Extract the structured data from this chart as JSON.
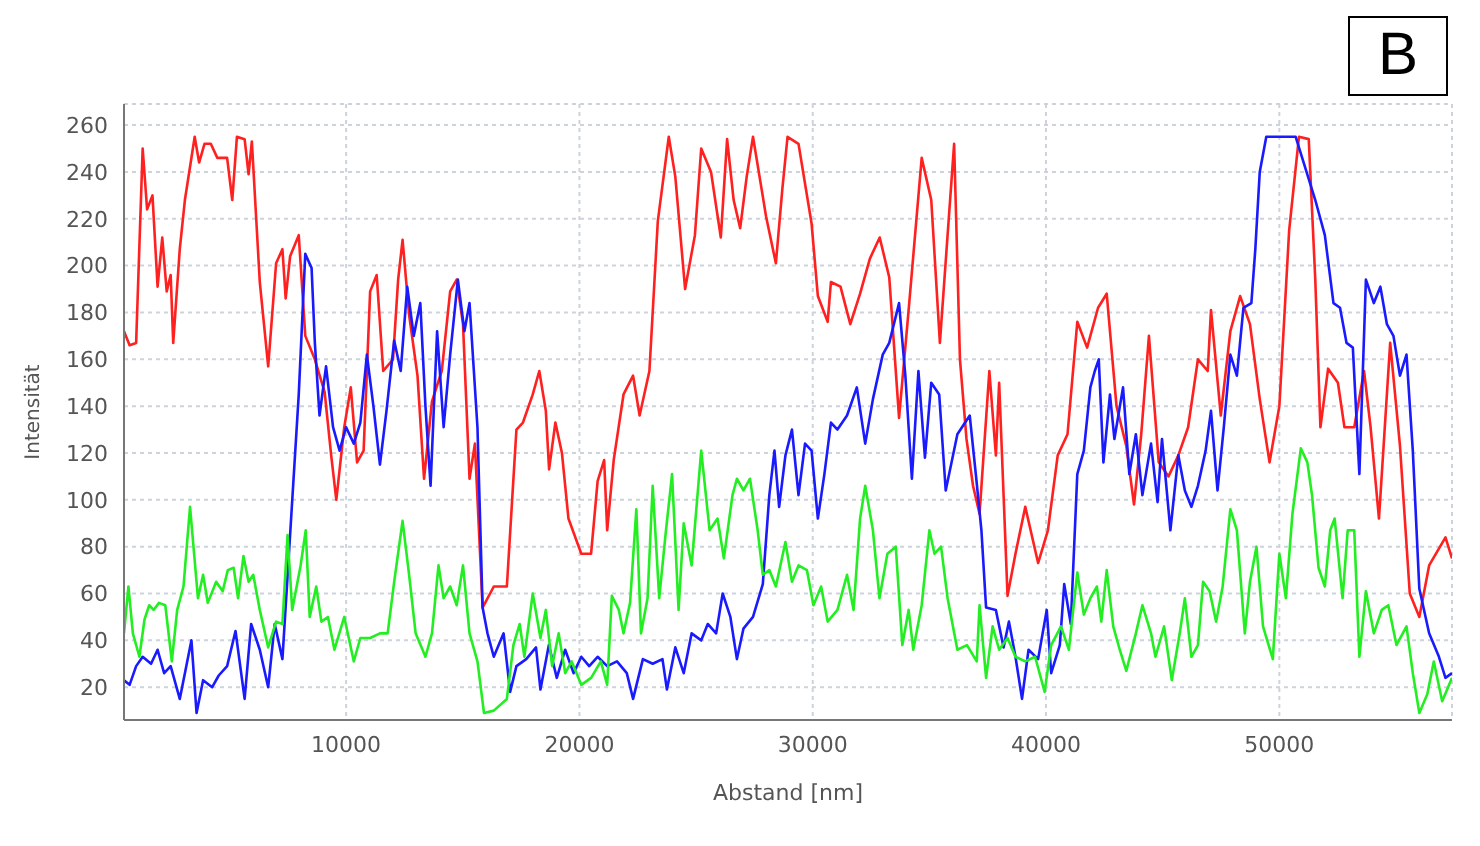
{
  "chart_data": {
    "type": "line",
    "xlabel": "Abstand [nm]",
    "ylabel": "Intensität",
    "annotations": [
      "B"
    ],
    "xlim": [
      480,
      57400
    ],
    "ylim": [
      6,
      269
    ],
    "xticks": [
      10000,
      20000,
      30000,
      40000,
      50000
    ],
    "yticks": [
      20,
      40,
      60,
      80,
      100,
      120,
      140,
      160,
      180,
      200,
      220,
      240,
      260
    ],
    "grid": true,
    "legend": false,
    "marker": "none",
    "line_style": "solid",
    "series": [
      {
        "color": "#ff2020",
        "x": [
          480,
          720,
          1000,
          1280,
          1470,
          1700,
          1920,
          2120,
          2310,
          2480,
          2590,
          2870,
          3090,
          3510,
          3700,
          3930,
          4200,
          4480,
          4900,
          5120,
          5320,
          5650,
          5820,
          5960,
          6300,
          6660,
          7000,
          7270,
          7410,
          7600,
          7970,
          8250,
          8660,
          9080,
          9360,
          9580,
          9920,
          10200,
          10470,
          10750,
          11030,
          11310,
          11590,
          12010,
          12230,
          12420,
          12700,
          13060,
          13340,
          13680,
          14100,
          14460,
          14740,
          15010,
          15290,
          15520,
          15850,
          16330,
          16890,
          17300,
          17580,
          18000,
          18280,
          18560,
          18700,
          18970,
          19250,
          19530,
          20080,
          20500,
          20780,
          21060,
          21190,
          21470,
          21890,
          22300,
          22580,
          23000,
          23360,
          23830,
          24110,
          24530,
          24950,
          25220,
          25640,
          26060,
          26330,
          26610,
          26890,
          27170,
          27440,
          28000,
          28420,
          28700,
          28920,
          29390,
          29950,
          30220,
          30640,
          30780,
          31190,
          31610,
          32030,
          32450,
          32870,
          33280,
          33700,
          34110,
          34670,
          35080,
          35450,
          36060,
          36310,
          36590,
          36870,
          37150,
          37570,
          37850,
          37990,
          38350,
          38690,
          39110,
          39660,
          40080,
          40500,
          40920,
          41340,
          41760,
          42230,
          42600,
          43020,
          43440,
          43770,
          44080,
          44410,
          44830,
          45250,
          45670,
          46090,
          46510,
          46930,
          47070,
          47490,
          47900,
          48320,
          48740,
          49160,
          49580,
          50000,
          50420,
          50840,
          51260,
          51540,
          51760,
          52090,
          52510,
          52790,
          53210,
          53630,
          53910,
          54270,
          54750,
          55170,
          55590,
          56000,
          56420,
          57120,
          57400
        ],
        "values": [
          172,
          166,
          167,
          250,
          224,
          230,
          191,
          212,
          189,
          196,
          167,
          207,
          228,
          255,
          244,
          252,
          252,
          246,
          246,
          228,
          255,
          254,
          239,
          253,
          193,
          157,
          201,
          207,
          186,
          204,
          213,
          170,
          160,
          146,
          119,
          100,
          131,
          148,
          116,
          121,
          189,
          196,
          155,
          160,
          194,
          211,
          179,
          153,
          109,
          142,
          155,
          189,
          194,
          175,
          109,
          124,
          54,
          63,
          63,
          130,
          133,
          145,
          155,
          138,
          113,
          133,
          120,
          92,
          77,
          77,
          108,
          117,
          87,
          117,
          145,
          153,
          136,
          155,
          219,
          255,
          238,
          190,
          213,
          250,
          240,
          212,
          254,
          228,
          216,
          238,
          255,
          221,
          201,
          233,
          255,
          252,
          218,
          187,
          176,
          193,
          191,
          175,
          188,
          203,
          212,
          195,
          135,
          181,
          246,
          228,
          167,
          252,
          160,
          126,
          106,
          94,
          155,
          119,
          150,
          59,
          77,
          97,
          73,
          87,
          119,
          128,
          176,
          165,
          182,
          188,
          140,
          123,
          98,
          128,
          170,
          116,
          110,
          119,
          131,
          160,
          155,
          181,
          136,
          172,
          187,
          175,
          143,
          116,
          140,
          215,
          255,
          254,
          194,
          131,
          156,
          150,
          131,
          131,
          155,
          131,
          92,
          167,
          123,
          60,
          50,
          72,
          84,
          75
        ]
      },
      {
        "color": "#1a1aff",
        "x": [
          480,
          720,
          1000,
          1280,
          1640,
          1920,
          2200,
          2480,
          2870,
          3090,
          3370,
          3590,
          3870,
          4260,
          4540,
          4900,
          5260,
          5650,
          5930,
          6300,
          6660,
          6940,
          7270,
          7550,
          7970,
          8250,
          8520,
          8660,
          8860,
          9140,
          9440,
          9720,
          10000,
          10330,
          10610,
          10890,
          11170,
          11450,
          11730,
          12060,
          12340,
          12620,
          12900,
          13180,
          13400,
          13620,
          13900,
          14180,
          14460,
          14790,
          15070,
          15290,
          15630,
          15850,
          16060,
          16330,
          16750,
          17030,
          17300,
          17720,
          18140,
          18330,
          18690,
          19030,
          19390,
          19750,
          20080,
          20420,
          20780,
          21190,
          21610,
          22030,
          22300,
          22720,
          23140,
          23560,
          23750,
          24110,
          24470,
          24810,
          25220,
          25500,
          25860,
          26140,
          26470,
          26750,
          27030,
          27440,
          27860,
          28140,
          28360,
          28560,
          28830,
          29110,
          29390,
          29670,
          29950,
          30220,
          30500,
          30780,
          31060,
          31470,
          31890,
          32250,
          32580,
          33000,
          33280,
          33700,
          33970,
          34250,
          34530,
          34810,
          35080,
          35420,
          35700,
          36200,
          36730,
          37010,
          37230,
          37430,
          37850,
          38180,
          38410,
          38690,
          38970,
          39250,
          39660,
          40030,
          40220,
          40590,
          40780,
          41060,
          41340,
          41620,
          41900,
          42090,
          42260,
          42460,
          42740,
          42930,
          43300,
          43570,
          43850,
          44130,
          44500,
          44780,
          44970,
          45330,
          45670,
          45950,
          46230,
          46510,
          46840,
          47070,
          47350,
          47620,
          47900,
          48180,
          48460,
          48800,
          48970,
          49160,
          49440,
          50700,
          51540,
          51950,
          52320,
          52600,
          52880,
          53150,
          53430,
          53710,
          54050,
          54330,
          54610,
          54890,
          55170,
          55450,
          55720,
          56000,
          56420,
          56840,
          57120,
          57400
        ],
        "values": [
          23,
          21,
          29,
          33,
          30,
          36,
          26,
          29,
          15,
          26,
          40,
          9,
          23,
          20,
          25,
          29,
          44,
          15,
          47,
          36,
          20,
          47,
          32,
          77,
          145,
          205,
          199,
          167,
          136,
          157,
          131,
          121,
          131,
          124,
          133,
          162,
          140,
          115,
          138,
          168,
          155,
          191,
          170,
          184,
          140,
          106,
          172,
          131,
          162,
          194,
          172,
          184,
          131,
          54,
          43,
          33,
          43,
          18,
          29,
          32,
          37,
          19,
          38,
          24,
          36,
          26,
          33,
          29,
          33,
          29,
          31,
          26,
          15,
          32,
          30,
          32,
          19,
          37,
          26,
          43,
          40,
          47,
          43,
          60,
          50,
          32,
          45,
          50,
          64,
          102,
          121,
          97,
          119,
          130,
          102,
          124,
          121,
          92,
          111,
          133,
          130,
          136,
          148,
          124,
          143,
          162,
          167,
          184,
          153,
          109,
          155,
          118,
          150,
          145,
          104,
          128,
          136,
          109,
          87,
          54,
          53,
          37,
          48,
          33,
          15,
          36,
          32,
          53,
          26,
          38,
          64,
          47,
          111,
          121,
          148,
          155,
          160,
          116,
          145,
          126,
          148,
          111,
          128,
          102,
          124,
          99,
          126,
          87,
          119,
          104,
          97,
          106,
          121,
          138,
          104,
          131,
          162,
          153,
          182,
          184,
          207,
          240,
          255,
          255,
          228,
          213,
          184,
          182,
          167,
          165,
          111,
          194,
          184,
          191,
          175,
          170,
          153,
          162,
          121,
          62,
          43,
          33,
          24,
          26
        ]
      },
      {
        "color": "#22ee22",
        "x": [
          480,
          670,
          860,
          1140,
          1360,
          1560,
          1750,
          1980,
          2250,
          2530,
          2760,
          3030,
          3310,
          3650,
          3870,
          4070,
          4430,
          4710,
          4930,
          5180,
          5370,
          5600,
          5820,
          6020,
          6300,
          6660,
          7000,
          7270,
          7490,
          7690,
          8050,
          8270,
          8440,
          8720,
          8940,
          9220,
          9500,
          9920,
          10330,
          10610,
          11030,
          11450,
          11780,
          12060,
          12420,
          12700,
          12980,
          13400,
          13680,
          13960,
          14180,
          14460,
          14740,
          15010,
          15290,
          15630,
          15910,
          16330,
          16890,
          17170,
          17440,
          17640,
          18000,
          18330,
          18560,
          18830,
          19110,
          19390,
          19670,
          20080,
          20500,
          20920,
          21190,
          21390,
          21690,
          21890,
          22170,
          22440,
          22640,
          22920,
          23140,
          23420,
          23690,
          23970,
          24250,
          24470,
          24810,
          25220,
          25580,
          25920,
          26190,
          26560,
          26750,
          27030,
          27310,
          27640,
          27860,
          28140,
          28420,
          28830,
          29110,
          29390,
          29750,
          30030,
          30360,
          30640,
          31060,
          31470,
          31750,
          32030,
          32250,
          32580,
          32860,
          33200,
          33560,
          33840,
          34110,
          34310,
          34670,
          35000,
          35220,
          35500,
          35780,
          36200,
          36610,
          37030,
          37150,
          37430,
          37710,
          37990,
          38350,
          38690,
          39110,
          39530,
          39940,
          40220,
          40640,
          40980,
          41340,
          41620,
          41900,
          42180,
          42370,
          42600,
          42880,
          43160,
          43440,
          43850,
          44130,
          44500,
          44690,
          45060,
          45390,
          45730,
          45950,
          46230,
          46510,
          46730,
          47010,
          47290,
          47570,
          47900,
          48180,
          48520,
          48740,
          49020,
          49300,
          49720,
          50000,
          50280,
          50560,
          50920,
          51200,
          51400,
          51680,
          51950,
          52180,
          52370,
          52710,
          52930,
          53210,
          53430,
          53710,
          54050,
          54390,
          54670,
          55020,
          55450,
          55720,
          56000,
          56340,
          56620,
          56980,
          57400
        ],
        "values": [
          43,
          63,
          43,
          33,
          49,
          55,
          53,
          56,
          55,
          31,
          53,
          63,
          97,
          58,
          68,
          56,
          65,
          61,
          70,
          71,
          58,
          76,
          65,
          68,
          53,
          37,
          48,
          47,
          85,
          53,
          72,
          87,
          50,
          63,
          48,
          50,
          36,
          50,
          31,
          41,
          41,
          43,
          43,
          65,
          91,
          68,
          43,
          33,
          43,
          72,
          58,
          63,
          55,
          72,
          43,
          31,
          9,
          10,
          15,
          38,
          47,
          33,
          60,
          41,
          53,
          29,
          43,
          26,
          31,
          21,
          24,
          31,
          21,
          59,
          53,
          43,
          56,
          96,
          43,
          58,
          106,
          58,
          85,
          111,
          53,
          90,
          72,
          121,
          87,
          92,
          75,
          102,
          109,
          104,
          109,
          87,
          68,
          70,
          63,
          82,
          65,
          72,
          70,
          55,
          63,
          48,
          53,
          68,
          53,
          92,
          106,
          87,
          58,
          77,
          80,
          38,
          53,
          36,
          55,
          87,
          77,
          80,
          58,
          36,
          38,
          31,
          55,
          24,
          46,
          36,
          41,
          33,
          31,
          33,
          18,
          38,
          46,
          36,
          69,
          51,
          58,
          63,
          48,
          70,
          46,
          36,
          27,
          43,
          55,
          43,
          33,
          46,
          23,
          43,
          58,
          33,
          38,
          65,
          61,
          48,
          63,
          96,
          87,
          43,
          65,
          80,
          46,
          32,
          77,
          58,
          94,
          122,
          116,
          102,
          71,
          63,
          87,
          92,
          58,
          87,
          87,
          33,
          61,
          43,
          53,
          55,
          38,
          46,
          26,
          9,
          17,
          31,
          14,
          24
        ]
      }
    ]
  }
}
